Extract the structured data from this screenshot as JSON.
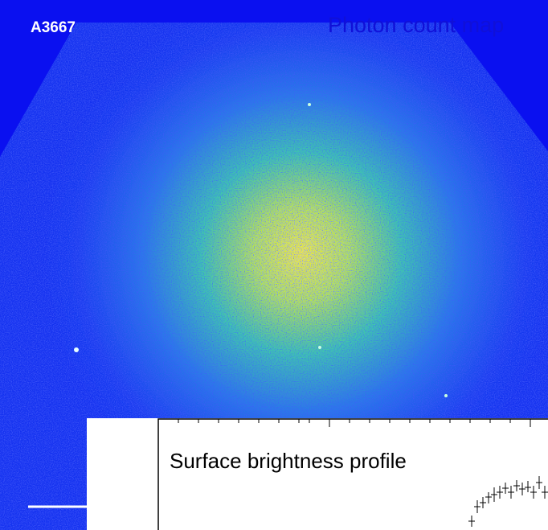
{
  "labels": {
    "cluster": "A3667",
    "map_title": "Photon count map",
    "inset_title": "Surface brightness profile"
  }
}
